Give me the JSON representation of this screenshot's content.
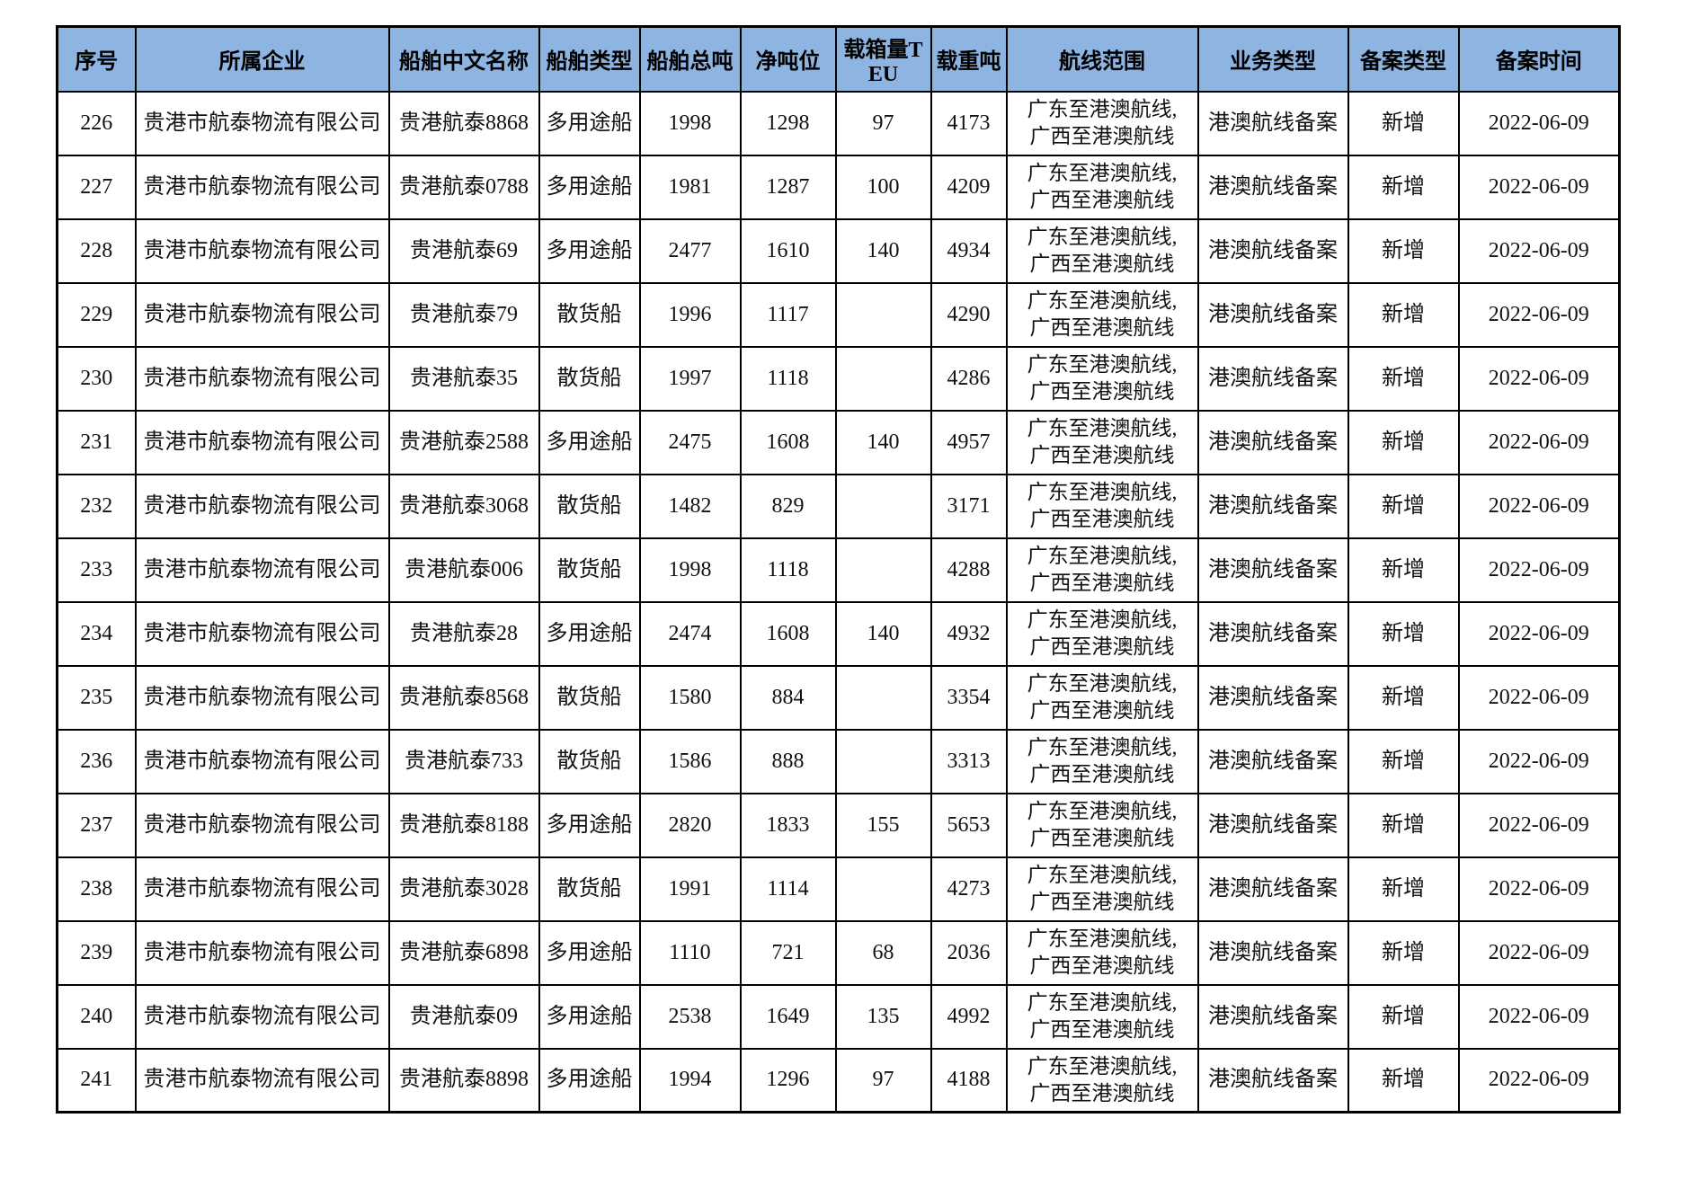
{
  "colors": {
    "header_bg": "#8EB4E2",
    "border": "#000000",
    "text": "#111111",
    "page_bg": "#FFFFFF"
  },
  "table": {
    "header": {
      "columns": [
        "序号",
        "所属企业",
        "船舶中文名称",
        "船舶类型",
        "船舶总吨",
        "净吨位",
        "载箱量TEU",
        "载重吨",
        "航线范围",
        "业务类型",
        "备案类型",
        "备案时间"
      ]
    },
    "rows": [
      {
        "seq": "226",
        "company": "贵港市航泰物流有限公司",
        "ship_name": "贵港航泰8868",
        "ship_type": "多用途船",
        "gross_tonnage": "1998",
        "net_tonnage": "1298",
        "teu": "97",
        "deadweight": "4173",
        "route_lines": [
          "广东至港澳航线,",
          "广西至港澳航线"
        ],
        "business_type": "港澳航线备案",
        "record_type": "新增",
        "record_date": "2022-06-09"
      },
      {
        "seq": "227",
        "company": "贵港市航泰物流有限公司",
        "ship_name": "贵港航泰0788",
        "ship_type": "多用途船",
        "gross_tonnage": "1981",
        "net_tonnage": "1287",
        "teu": "100",
        "deadweight": "4209",
        "route_lines": [
          "广东至港澳航线,",
          "广西至港澳航线"
        ],
        "business_type": "港澳航线备案",
        "record_type": "新增",
        "record_date": "2022-06-09"
      },
      {
        "seq": "228",
        "company": "贵港市航泰物流有限公司",
        "ship_name": "贵港航泰69",
        "ship_type": "多用途船",
        "gross_tonnage": "2477",
        "net_tonnage": "1610",
        "teu": "140",
        "deadweight": "4934",
        "route_lines": [
          "广东至港澳航线,",
          "广西至港澳航线"
        ],
        "business_type": "港澳航线备案",
        "record_type": "新增",
        "record_date": "2022-06-09"
      },
      {
        "seq": "229",
        "company": "贵港市航泰物流有限公司",
        "ship_name": "贵港航泰79",
        "ship_type": "散货船",
        "gross_tonnage": "1996",
        "net_tonnage": "1117",
        "teu": "",
        "deadweight": "4290",
        "route_lines": [
          "广东至港澳航线,",
          "广西至港澳航线"
        ],
        "business_type": "港澳航线备案",
        "record_type": "新增",
        "record_date": "2022-06-09"
      },
      {
        "seq": "230",
        "company": "贵港市航泰物流有限公司",
        "ship_name": "贵港航泰35",
        "ship_type": "散货船",
        "gross_tonnage": "1997",
        "net_tonnage": "1118",
        "teu": "",
        "deadweight": "4286",
        "route_lines": [
          "广东至港澳航线,",
          "广西至港澳航线"
        ],
        "business_type": "港澳航线备案",
        "record_type": "新增",
        "record_date": "2022-06-09"
      },
      {
        "seq": "231",
        "company": "贵港市航泰物流有限公司",
        "ship_name": "贵港航泰2588",
        "ship_type": "多用途船",
        "gross_tonnage": "2475",
        "net_tonnage": "1608",
        "teu": "140",
        "deadweight": "4957",
        "route_lines": [
          "广东至港澳航线,",
          "广西至港澳航线"
        ],
        "business_type": "港澳航线备案",
        "record_type": "新增",
        "record_date": "2022-06-09"
      },
      {
        "seq": "232",
        "company": "贵港市航泰物流有限公司",
        "ship_name": "贵港航泰3068",
        "ship_type": "散货船",
        "gross_tonnage": "1482",
        "net_tonnage": "829",
        "teu": "",
        "deadweight": "3171",
        "route_lines": [
          "广东至港澳航线,",
          "广西至港澳航线"
        ],
        "business_type": "港澳航线备案",
        "record_type": "新增",
        "record_date": "2022-06-09"
      },
      {
        "seq": "233",
        "company": "贵港市航泰物流有限公司",
        "ship_name": "贵港航泰006",
        "ship_type": "散货船",
        "gross_tonnage": "1998",
        "net_tonnage": "1118",
        "teu": "",
        "deadweight": "4288",
        "route_lines": [
          "广东至港澳航线,",
          "广西至港澳航线"
        ],
        "business_type": "港澳航线备案",
        "record_type": "新增",
        "record_date": "2022-06-09"
      },
      {
        "seq": "234",
        "company": "贵港市航泰物流有限公司",
        "ship_name": "贵港航泰28",
        "ship_type": "多用途船",
        "gross_tonnage": "2474",
        "net_tonnage": "1608",
        "teu": "140",
        "deadweight": "4932",
        "route_lines": [
          "广东至港澳航线,",
          "广西至港澳航线"
        ],
        "business_type": "港澳航线备案",
        "record_type": "新增",
        "record_date": "2022-06-09"
      },
      {
        "seq": "235",
        "company": "贵港市航泰物流有限公司",
        "ship_name": "贵港航泰8568",
        "ship_type": "散货船",
        "gross_tonnage": "1580",
        "net_tonnage": "884",
        "teu": "",
        "deadweight": "3354",
        "route_lines": [
          "广东至港澳航线,",
          "广西至港澳航线"
        ],
        "business_type": "港澳航线备案",
        "record_type": "新增",
        "record_date": "2022-06-09"
      },
      {
        "seq": "236",
        "company": "贵港市航泰物流有限公司",
        "ship_name": "贵港航泰733",
        "ship_type": "散货船",
        "gross_tonnage": "1586",
        "net_tonnage": "888",
        "teu": "",
        "deadweight": "3313",
        "route_lines": [
          "广东至港澳航线,",
          "广西至港澳航线"
        ],
        "business_type": "港澳航线备案",
        "record_type": "新增",
        "record_date": "2022-06-09"
      },
      {
        "seq": "237",
        "company": "贵港市航泰物流有限公司",
        "ship_name": "贵港航泰8188",
        "ship_type": "多用途船",
        "gross_tonnage": "2820",
        "net_tonnage": "1833",
        "teu": "155",
        "deadweight": "5653",
        "route_lines": [
          "广东至港澳航线,",
          "广西至港澳航线"
        ],
        "business_type": "港澳航线备案",
        "record_type": "新增",
        "record_date": "2022-06-09"
      },
      {
        "seq": "238",
        "company": "贵港市航泰物流有限公司",
        "ship_name": "贵港航泰3028",
        "ship_type": "散货船",
        "gross_tonnage": "1991",
        "net_tonnage": "1114",
        "teu": "",
        "deadweight": "4273",
        "route_lines": [
          "广东至港澳航线,",
          "广西至港澳航线"
        ],
        "business_type": "港澳航线备案",
        "record_type": "新增",
        "record_date": "2022-06-09"
      },
      {
        "seq": "239",
        "company": "贵港市航泰物流有限公司",
        "ship_name": "贵港航泰6898",
        "ship_type": "多用途船",
        "gross_tonnage": "1110",
        "net_tonnage": "721",
        "teu": "68",
        "deadweight": "2036",
        "route_lines": [
          "广东至港澳航线,",
          "广西至港澳航线"
        ],
        "business_type": "港澳航线备案",
        "record_type": "新增",
        "record_date": "2022-06-09"
      },
      {
        "seq": "240",
        "company": "贵港市航泰物流有限公司",
        "ship_name": "贵港航泰09",
        "ship_type": "多用途船",
        "gross_tonnage": "2538",
        "net_tonnage": "1649",
        "teu": "135",
        "deadweight": "4992",
        "route_lines": [
          "广东至港澳航线,",
          "广西至港澳航线"
        ],
        "business_type": "港澳航线备案",
        "record_type": "新增",
        "record_date": "2022-06-09"
      },
      {
        "seq": "241",
        "company": "贵港市航泰物流有限公司",
        "ship_name": "贵港航泰8898",
        "ship_type": "多用途船",
        "gross_tonnage": "1994",
        "net_tonnage": "1296",
        "teu": "97",
        "deadweight": "4188",
        "route_lines": [
          "广东至港澳航线,",
          "广西至港澳航线"
        ],
        "business_type": "港澳航线备案",
        "record_type": "新增",
        "record_date": "2022-06-09"
      }
    ]
  }
}
